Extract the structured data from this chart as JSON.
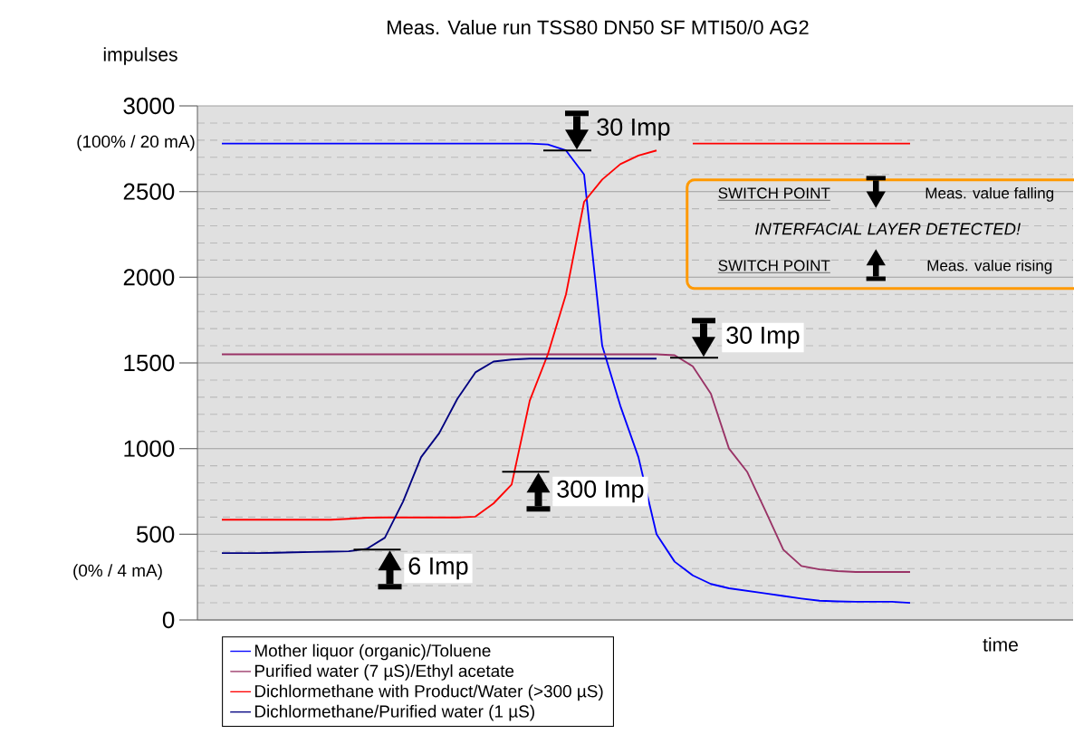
{
  "chart_data": {
    "type": "line",
    "title": "Meas. Value run TSS80 DN50 SF MTI50/0 AG2",
    "ylabel": "impulses",
    "xlabel": "time",
    "categories": [
      null,
      null,
      null,
      null,
      null,
      null,
      null,
      null,
      null,
      null,
      null,
      null,
      null,
      null,
      null,
      null,
      null,
      null,
      null,
      null,
      null,
      null,
      null,
      null,
      null,
      null,
      null,
      null,
      null,
      null,
      null,
      null,
      null,
      null,
      null,
      null,
      null,
      null,
      null
    ],
    "series": [
      {
        "name": "Mother liquor (organic)/Toluene",
        "color": "#0000ff",
        "values": [
          2780,
          2780,
          2780,
          2780,
          2780,
          2780,
          2780,
          2780,
          2780,
          2780,
          2780,
          2780,
          2780,
          2780,
          2780,
          2780,
          2780,
          2780,
          2775,
          2740,
          2600,
          1600,
          1250,
          950,
          500,
          340,
          260,
          210,
          185,
          170,
          155,
          140,
          125,
          112,
          108,
          106,
          106,
          106,
          100
        ]
      },
      {
        "name": "Purified water (7 µS)/Ethyl acetate",
        "color": "#993366",
        "values": [
          1550,
          1550,
          1550,
          1550,
          1550,
          1550,
          1550,
          1550,
          1550,
          1550,
          1550,
          1550,
          1550,
          1550,
          1550,
          1550,
          1550,
          1550,
          1550,
          1550,
          1550,
          1550,
          1550,
          1550,
          1550,
          1545,
          1480,
          1320,
          1000,
          865,
          640,
          410,
          315,
          295,
          285,
          280,
          280,
          280,
          280
        ]
      },
      {
        "name": "Dichlormethane with Product/Water (>300 µS)",
        "color": "#ff0000",
        "values": [
          585,
          585,
          585,
          585,
          585,
          585,
          585,
          590,
          597,
          598,
          598,
          598,
          598,
          598,
          603,
          680,
          790,
          1280,
          1550,
          1900,
          2440,
          2570,
          2660,
          2710,
          2740,
          null,
          2780,
          2780,
          2780,
          2780,
          2780,
          2780,
          2780,
          2780,
          2780,
          2780,
          2780,
          2780,
          2780
        ]
      },
      {
        "name": "Dichlormethane/Purified water (1 µS)",
        "color": "#000080",
        "values": [
          390,
          390,
          390,
          392,
          395,
          397,
          399,
          401,
          415,
          480,
          690,
          950,
          1090,
          1290,
          1445,
          1508,
          1520,
          1525,
          1525,
          1525,
          1525,
          1525,
          1525,
          1525,
          1525,
          null,
          null,
          null,
          null,
          null,
          null,
          null,
          null,
          null,
          null,
          null,
          null,
          null,
          null
        ]
      }
    ],
    "ylim": [
      0,
      3000
    ],
    "yticks": [
      0,
      500,
      1000,
      1500,
      2000,
      2500,
      3000
    ],
    "grid": "y",
    "legend": "bottom",
    "tick_labels": "y",
    "marker": "none",
    "line_style": "solid",
    "annotations": [
      "30 Imp",
      "30 Imp",
      "300 Imp",
      "6 Imp",
      "SWITCH POINT",
      "Meas. value falling",
      "INTERFACIAL LAYER DETECTED!",
      "SWITCH POINT",
      "Meas. value rising",
      "(100% / 20 mA)",
      "(0% / 4 mA)"
    ]
  }
}
